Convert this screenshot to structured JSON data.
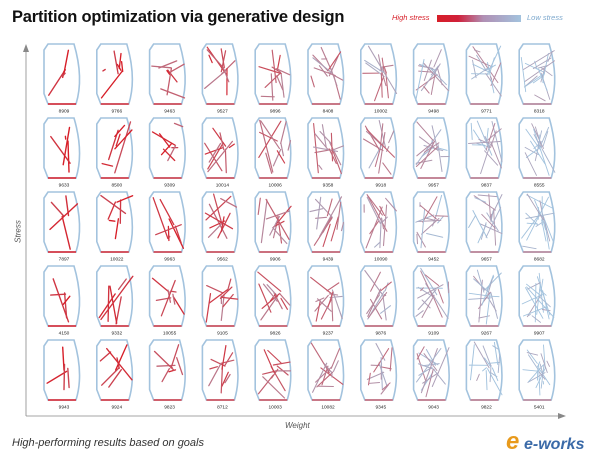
{
  "title": "Partition optimization via generative design",
  "legend": {
    "high_label": "High stress",
    "low_label": "Low stress",
    "high_color": "#d71e28",
    "low_color": "#a3c3de"
  },
  "axes": {
    "y_label": "Stress",
    "x_label": "Weight"
  },
  "footer": "High-performing results based on goals",
  "watermark": "e-works",
  "grid": {
    "columns": 10,
    "rows": [
      {
        "values": [
          "8909",
          "9766",
          "9463",
          "9527",
          "9896",
          "8408",
          "10002",
          "9498",
          "9771",
          "8318"
        ]
      },
      {
        "values": [
          "9633",
          "8500",
          "9309",
          "10014",
          "10006",
          "9358",
          "9918",
          "9957",
          "9837",
          "8555"
        ]
      },
      {
        "values": [
          "7897",
          "10022",
          "9963",
          "9562",
          "9906",
          "9439",
          "10090",
          "9452",
          "9657",
          "8682"
        ]
      },
      {
        "values": [
          "4150",
          "9332",
          "10055",
          "9105",
          "9826",
          "9237",
          "9876",
          "9109",
          "9267",
          "9907"
        ]
      },
      {
        "values": [
          "9943",
          "9924",
          "9823",
          "8712",
          "10003",
          "10082",
          "9345",
          "9043",
          "9822",
          "5401"
        ]
      }
    ]
  }
}
